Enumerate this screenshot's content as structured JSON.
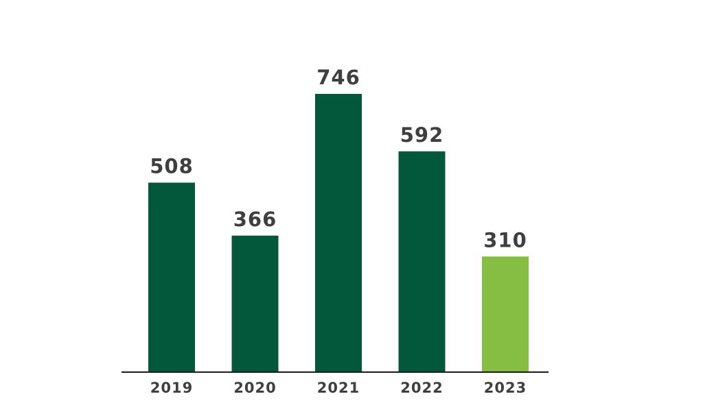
{
  "chart_data": {
    "type": "bar",
    "title": "",
    "xlabel": "",
    "ylabel": "",
    "categories": [
      "2019",
      "2020",
      "2021",
      "2022",
      "2023"
    ],
    "values": [
      508,
      366,
      746,
      592,
      310
    ],
    "value_labels": [
      "508",
      "366",
      "746",
      "592",
      "310"
    ],
    "ylim": [
      0,
      746
    ],
    "grid": false,
    "legend": "none",
    "colors": {
      "default_bar": "#03573a",
      "highlight_bar": "#86bd43",
      "axis": "#1a1a1a",
      "text": "#3f3f3f"
    },
    "highlight_index": 4
  }
}
